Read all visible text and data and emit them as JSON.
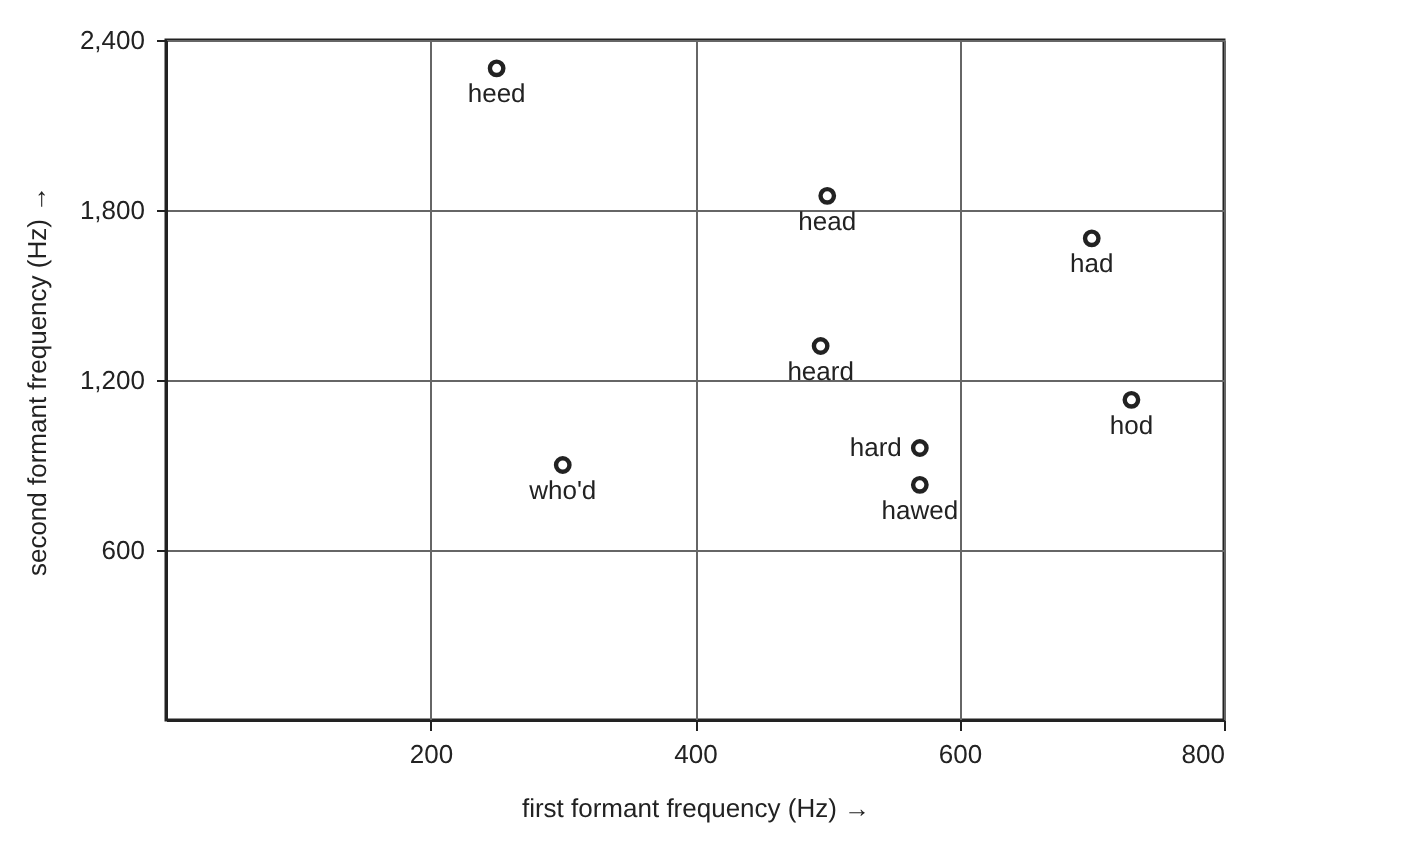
{
  "chart_data": {
    "type": "scatter",
    "xlabel": "first formant frequency (Hz)  →",
    "ylabel": "second formant frequency (Hz)  →",
    "x": [
      250,
      500,
      700,
      495,
      730,
      570,
      570,
      300
    ],
    "series": [
      {
        "color": "#222222",
        "values": [
          2300,
          1850,
          1700,
          1320,
          1130,
          960,
          830,
          900
        ]
      }
    ],
    "xlim": [
      0,
      800
    ],
    "ylim": [
      0,
      2400
    ],
    "xticks": [
      200,
      400,
      600,
      800
    ],
    "yticks": [
      600,
      {
        "value": 1200,
        "label": "1,200"
      },
      {
        "value": 1800,
        "label": "1,800"
      },
      {
        "value": 2400,
        "label": "2,400"
      }
    ],
    "grid": true,
    "marker": "circle",
    "annotations": [
      {
        "text": "heed",
        "x": 250,
        "y": 2300
      },
      {
        "text": "head",
        "x": 500,
        "y": 1850
      },
      {
        "text": "had",
        "x": 700,
        "y": 1700
      },
      {
        "text": "heard",
        "x": 495,
        "y": 1320
      },
      {
        "text": "hod",
        "x": 730,
        "y": 1130
      },
      {
        "text": "hard",
        "x": 570,
        "y": 960
      },
      {
        "text": "hawed",
        "x": 570,
        "y": 830
      },
      {
        "text": "who'd",
        "x": 300,
        "y": 900
      }
    ]
  }
}
